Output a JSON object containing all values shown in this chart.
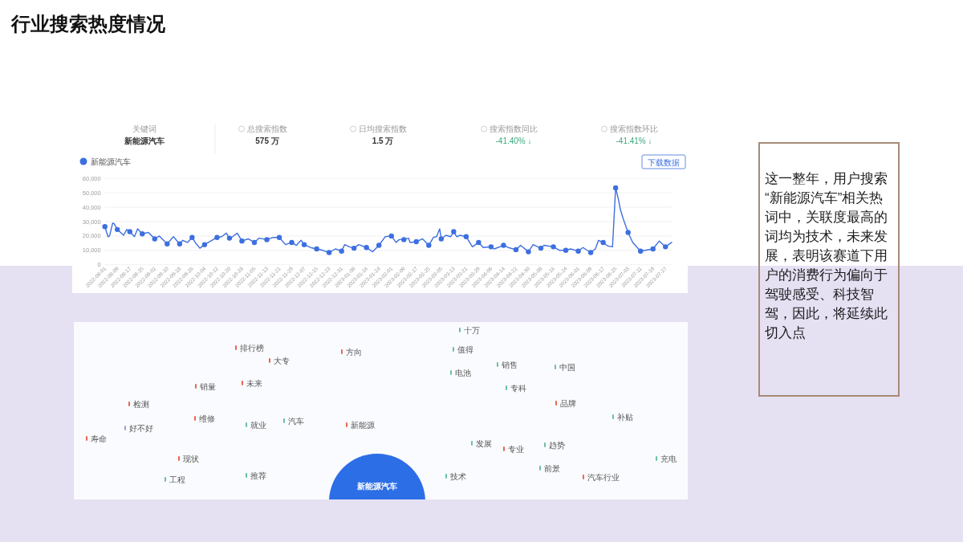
{
  "chart_data": [
    {
      "type": "line",
      "title": "行业搜索热度情况",
      "x": [
        "2022-08-01",
        "2022-08-03",
        "2022-08-04",
        "2022-08-06",
        "2022-08-07",
        "2022-08-09",
        "2022-08-13",
        "2022-08-15",
        "2022-08-17",
        "2022-08-20",
        "2022-08-22",
        "2022-08-25",
        "2022-08-29",
        "2022-09-02",
        "2022-09-05",
        "2022-09-10",
        "2022-09-14",
        "2022-09-18",
        "2022-09-20",
        "2022-09-23",
        "2022-09-26",
        "2022-09-28",
        "2022-10-01",
        "2022-10-04",
        "2022-10-08",
        "2022-10-12",
        "2022-10-15",
        "2022-10-18",
        "2022-10-20",
        "2022-10-22",
        "2022-10-25",
        "2022-10-28",
        "2022-11-01",
        "2022-11-05",
        "2022-11-08",
        "2022-11-13",
        "2022-11-17",
        "2022-11-21",
        "2022-11-25",
        "2022-11-29",
        "2022-12-02",
        "2022-12-05",
        "2022-12-07",
        "2022-12-11",
        "2022-12-15",
        "2022-12-19",
        "2022-12-23",
        "2022-12-27",
        "2022-12-31",
        "2023-01-02",
        "2023-01-05",
        "2023-01-08",
        "2023-01-11",
        "2023-01-16",
        "2023-01-20",
        "2023-01-24",
        "2023-01-28",
        "2023-02-01",
        "2023-02-04",
        "2023-02-06",
        "2023-02-09",
        "2023-02-12",
        "2023-02-13",
        "2023-02-17",
        "2023-02-21",
        "2023-02-25",
        "2023-02-28",
        "2023-03-02",
        "2023-03-04",
        "2023-03-05",
        "2023-03-08",
        "2023-03-11",
        "2023-03-13",
        "2023-03-15",
        "2023-03-17",
        "2023-03-21",
        "2023-03-25",
        "2023-03-29",
        "2023-04-01",
        "2023-04-06",
        "2023-04-08",
        "2023-04-14",
        "2023-04-17",
        "2023-04-22",
        "2023-04-25",
        "2023-04-30",
        "2023-05-03",
        "2023-05-08",
        "2023-05-10",
        "2023-05-16",
        "2023-05-20",
        "2023-05-24",
        "2023-05-27",
        "2023-06-01",
        "2023-06-04",
        "2023-06-09",
        "2023-06-12",
        "2023-06-14",
        "2023-06-17",
        "2023-06-20",
        "2023-06-23",
        "2023-06-25",
        "2023-06-27",
        "2023-06-28",
        "2023-06-30",
        "2023-07-03",
        "2023-07-06",
        "2023-07-11",
        "2023-07-14",
        "2023-07-19",
        "2023-07-23",
        "2023-07-27",
        "2023-07-31"
      ],
      "series": [
        {
          "name": "新能源汽车",
          "color": "#3d6fe0",
          "type": "line",
          "marker": "none",
          "values": [
            26500,
            19500,
            20000,
            29000,
            28500,
            24500,
            20500,
            24500,
            23000,
            19500,
            25000,
            21500,
            22500,
            18000,
            20000,
            14500,
            19500,
            14500,
            17000,
            15500,
            19000,
            15500,
            11500,
            14000,
            16500,
            19000,
            19500,
            22000,
            18500,
            19500,
            22000,
            16500,
            18000,
            15500,
            18500,
            17500,
            19000,
            19000,
            14000,
            15500,
            13500,
            17000,
            14000,
            12000,
            11000,
            10000,
            8500,
            11000,
            9500,
            14000,
            12500,
            11500,
            14000,
            12000,
            9000,
            13500,
            19500,
            20000,
            15500,
            17500,
            17500,
            18500,
            15500,
            16000,
            18000,
            13500,
            19000,
            19500,
            25000,
            18000,
            20500,
            19500,
            23000,
            19500,
            20500,
            19500,
            12500,
            15500,
            12000,
            12500,
            11000,
            13500,
            12000,
            10500,
            13500,
            9000,
            14000,
            11500,
            13500,
            12500,
            10000,
            10000,
            11000,
            9500,
            12000,
            8500,
            11000,
            17000,
            15500,
            13000,
            12500,
            53500,
            44500,
            38500,
            31500,
            22500,
            15500,
            9500,
            10000,
            11000,
            16500,
            12500,
            15500
          ]
        },
        {
          "color": "#3d6fe0",
          "type": "scatter",
          "marker": "circle",
          "x": [
            "2022-08-01",
            "2022-08-09",
            "2022-08-17",
            "2022-08-25",
            "2022-09-02",
            "2022-09-10",
            "2022-09-18",
            "2022-09-26",
            "2022-10-04",
            "2022-10-12",
            "2022-10-20",
            "2022-10-28",
            "2022-11-05",
            "2022-11-13",
            "2022-11-21",
            "2022-11-29",
            "2022-12-07",
            "2022-12-15",
            "2022-12-23",
            "2022-12-31",
            "2023-01-08",
            "2023-01-16",
            "2023-01-24",
            "2023-02-01",
            "2023-02-09",
            "2023-02-17",
            "2023-02-25",
            "2023-03-05",
            "2023-03-13",
            "2023-03-21",
            "2023-03-29",
            "2023-04-06",
            "2023-04-14",
            "2023-04-22",
            "2023-04-30",
            "2023-05-08",
            "2023-05-16",
            "2023-05-24",
            "2023-06-01",
            "2023-06-09",
            "2023-06-17",
            "2023-06-25",
            "2023-07-03",
            "2023-07-11",
            "2023-07-19",
            "2023-07-27"
          ],
          "values": [
            26500,
            24500,
            23000,
            21500,
            18000,
            14500,
            14500,
            19000,
            14000,
            19000,
            18500,
            16500,
            15500,
            17500,
            19000,
            15500,
            14000,
            11000,
            8500,
            9500,
            11500,
            12000,
            13500,
            20000,
            17500,
            16000,
            13500,
            18000,
            23000,
            19500,
            15500,
            12500,
            13500,
            10500,
            9000,
            11500,
            12500,
            10000,
            9500,
            8500,
            15500,
            53500,
            22500,
            9500,
            11000,
            12500
          ]
        }
      ],
      "xlim": [
        "2022-08-01",
        "2023-07-31"
      ],
      "xticks": [
        "2022-08-01",
        "2022-08-09",
        "2022-08-17",
        "2022-08-25",
        "2022-09-02",
        "2022-09-10",
        "2022-09-18",
        "2022-09-26",
        "2022-10-04",
        "2022-10-12",
        "2022-10-20",
        "2022-10-28",
        "2022-11-05",
        "2022-11-13",
        "2022-11-21",
        "2022-11-29",
        "2022-12-07",
        "2022-12-15",
        "2022-12-23",
        "2022-12-31",
        "2023-01-08",
        "2023-01-16",
        "2023-01-24",
        "2023-02-01",
        "2023-02-09",
        "2023-02-17",
        "2023-02-25",
        "2023-03-05",
        "2023-03-13",
        "2023-03-21",
        "2023-03-29",
        "2023-04-06",
        "2023-04-14",
        "2023-04-22",
        "2023-04-30",
        "2023-05-08",
        "2023-05-16",
        "2023-05-24",
        "2023-06-01",
        "2023-06-09",
        "2023-06-17",
        "2023-06-25",
        "2023-07-03",
        "2023-07-11",
        "2023-07-19",
        "2023-07-27"
      ],
      "ylim": [
        0,
        60000
      ],
      "yticks": [
        0,
        {
          "value": 10000,
          "label": "10,000"
        },
        {
          "value": 20000,
          "label": "20,000"
        },
        {
          "value": 30000,
          "label": "30,000"
        },
        {
          "value": 40000,
          "label": "40,000"
        },
        {
          "value": 50000,
          "label": "50,000"
        },
        {
          "value": 60000,
          "label": "60,000"
        }
      ],
      "grid": "y",
      "legend": "top left",
      "line_style": "solid",
      "annotations": [
        "关键词",
        "新能源汽车",
        "总搜索指数",
        "575 万",
        "日均搜索指数",
        "1.5 万",
        "搜索指数同比",
        "-41.40% ↓",
        "搜索指数环比",
        "-41.41% ↓",
        "下载数据"
      ]
    },
    {
      "type": "other",
      "categories": [
        "新能源汽车",
        "十万",
        "排行榜",
        "值得",
        "方向",
        "大专",
        "销售",
        "中国",
        "电池",
        "未来",
        "销量",
        "专科",
        "品牌",
        "检测",
        "补贴",
        "维修",
        "汽车",
        "就业",
        "新能源",
        "好不好",
        "寿命",
        "发展",
        "趋势",
        "专业",
        "现状",
        "充电",
        "前景",
        "推荐",
        "技术",
        "汽车行业",
        "工程"
      ],
      "colors": [
        "#2c6ee6",
        "#5bb89a",
        "#e8553d",
        "#5bb89a",
        "#e8553d",
        "#e8553d",
        "#5bb89a",
        "#5bb89a",
        "#5bb89a",
        "#e8553d",
        "#e8553d",
        "#5bb89a",
        "#e8553d",
        "#e8553d",
        "#5bb89a",
        "#e8553d",
        "#5bb89a",
        "#5bb89a",
        "#e8553d",
        "#8c9cc8",
        "#e8553d",
        "#5bb89a",
        "#5bb89a",
        "#e8553d",
        "#e8553d",
        "#5bb89a",
        "#5bb89a",
        "#5bb89a",
        "#5bb89a",
        "#e8553d",
        "#5bb89a"
      ]
    },
    {
      "type": "other",
      "annotations": [
        "这一整年，用户搜索“新能源汽车”相关热词中，关联度最高的词均为技术，未来发展，表明该赛道下用户的消费行为偏向于驾驶感受、科技智驾，因此，将延续此切入点"
      ]
    }
  ]
}
